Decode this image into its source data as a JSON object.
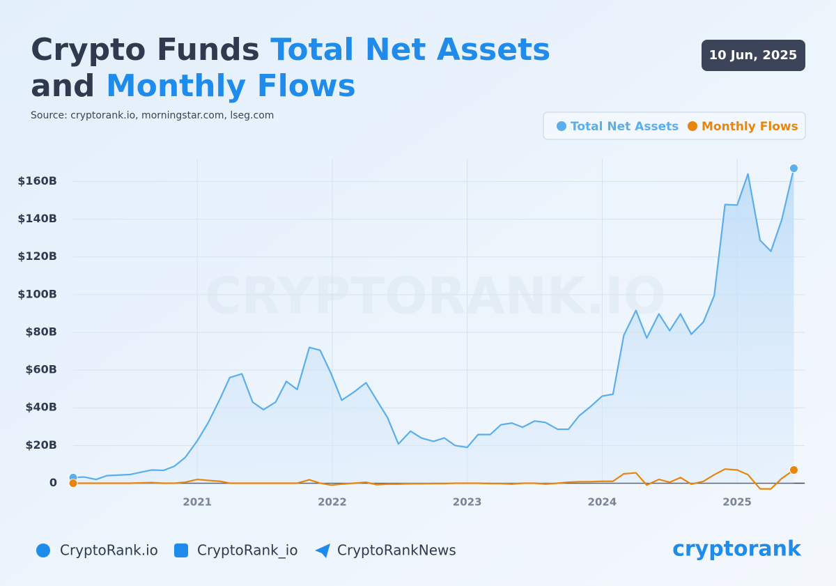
{
  "chart_data": {
    "type": "line",
    "title_parts": [
      "Crypto Funds ",
      "Total Net Assets",
      "and ",
      "Monthly Flows"
    ],
    "source": "Source: cryptorank.io, morningstar.com, lseg.com",
    "date": "10 Jun, 2025",
    "watermark": "CRYPTORANK.IO",
    "x": [
      2020.08,
      2020.16,
      2020.25,
      2020.33,
      2020.5,
      2020.66,
      2020.75,
      2020.83,
      2020.91,
      2021.0,
      2021.08,
      2021.17,
      2021.24,
      2021.33,
      2021.41,
      2021.49,
      2021.58,
      2021.66,
      2021.74,
      2021.83,
      2021.91,
      2021.99,
      2022.07,
      2022.16,
      2022.25,
      2022.33,
      2022.41,
      2022.49,
      2022.58,
      2022.66,
      2022.75,
      2022.83,
      2022.91,
      2023.0,
      2023.08,
      2023.17,
      2023.25,
      2023.33,
      2023.41,
      2023.5,
      2023.58,
      2023.67,
      2023.75,
      2023.83,
      2023.91,
      2024.0,
      2024.08,
      2024.16,
      2024.25,
      2024.33,
      2024.42,
      2024.5,
      2024.58,
      2024.66,
      2024.75,
      2024.83,
      2024.91,
      2025.0,
      2025.08,
      2025.17,
      2025.25,
      2025.33,
      2025.42
    ],
    "series": [
      {
        "name": "Total Net Assets",
        "color": "#5aaeee",
        "values": [
          3,
          3.3,
          2,
          4,
          4.6,
          7,
          6.8,
          9,
          13.6,
          22.5,
          32,
          45,
          56,
          58,
          43,
          39,
          43,
          54,
          49.7,
          72,
          70.5,
          58.3,
          44,
          48.3,
          53.3,
          44,
          34.7,
          20.8,
          27.6,
          24,
          22.2,
          24,
          20,
          19,
          25.8,
          25.8,
          31,
          31.9,
          29.7,
          33,
          32.2,
          28.6,
          28.6,
          35.8,
          40.4,
          46.2,
          47.2,
          78.4,
          91.6,
          77,
          89.8,
          80.9,
          89.8,
          79,
          85.5,
          99.5,
          147.8,
          147.5,
          164,
          128.8,
          123,
          139.6,
          167
        ]
      },
      {
        "name": "Monthly Flows",
        "color": "#e8850c",
        "values": [
          0,
          0,
          0,
          0,
          0,
          0.3,
          0,
          0,
          0.5,
          2,
          1.5,
          1,
          0,
          0,
          0,
          0,
          0,
          0,
          0,
          1.8,
          0,
          -1,
          -0.5,
          0,
          0.5,
          -0.8,
          -0.5,
          -0.5,
          -0.3,
          -0.3,
          -0.2,
          -0.2,
          0,
          0,
          0,
          -0.2,
          -0.2,
          -0.5,
          0,
          0,
          -0.5,
          0,
          0.5,
          0.8,
          0.8,
          1,
          1,
          5,
          5.5,
          -1,
          2,
          0.5,
          3,
          -0.5,
          1,
          4.5,
          7.5,
          7,
          4.5,
          -3,
          -3,
          2.5,
          7
        ]
      }
    ],
    "xlim": [
      2020.08,
      2025.5
    ],
    "xticks": [
      2021,
      2022,
      2023,
      2024,
      2025
    ],
    "ylim": [
      -5,
      172
    ],
    "yticks": [
      0,
      {
        "value": 20,
        "label": "$20B"
      },
      {
        "value": 40,
        "label": "$40B"
      },
      {
        "value": 60,
        "label": "$60B"
      },
      {
        "value": 80,
        "label": "$80B"
      },
      {
        "value": 100,
        "label": "$100B"
      },
      {
        "value": 120,
        "label": "$120B"
      },
      {
        "value": 140,
        "label": "$140B"
      },
      {
        "value": 160,
        "label": "$160B"
      }
    ],
    "grid": true,
    "legend": "top-right",
    "footer": [
      "CryptoRank.io",
      "CryptoRank_io",
      "CryptoRankNews"
    ],
    "brand": "cryptorank"
  }
}
